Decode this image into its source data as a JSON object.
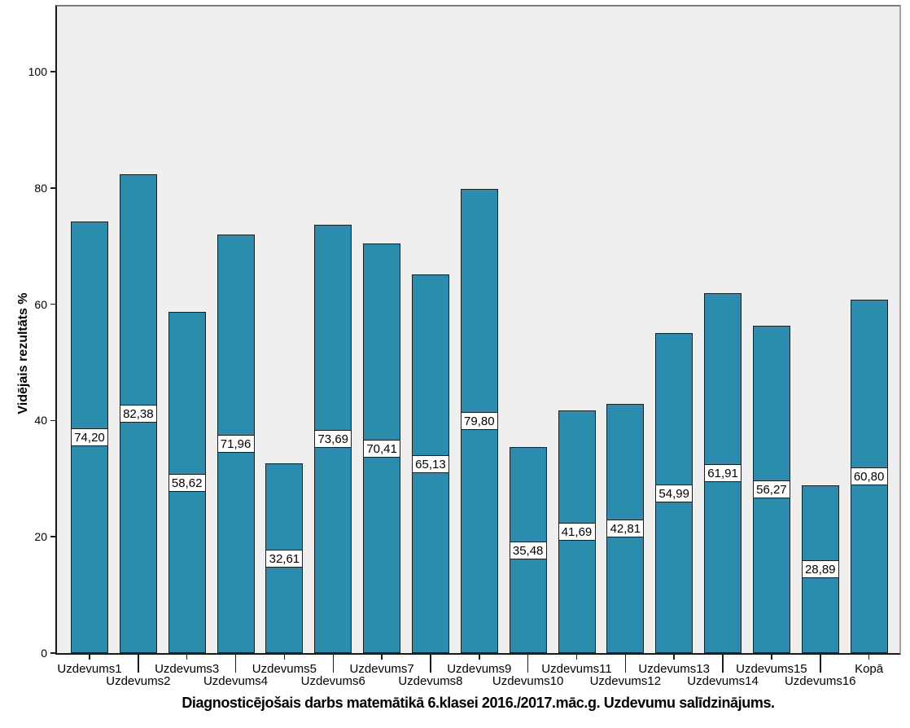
{
  "chart_data": {
    "type": "bar",
    "title": "Diagnosticējošais darbs matemātikā 6.klasei 2016./2017.māc.g. Uzdevumu salīdzinājums.",
    "ylabel": "Vidējais rezultāts %",
    "xlabel": "",
    "categories": [
      "Uzdevums1",
      "Uzdevums2",
      "Uzdevums3",
      "Uzdevums4",
      "Uzdevums5",
      "Uzdevums6",
      "Uzdevums7",
      "Uzdevums8",
      "Uzdevums9",
      "Uzdevums10",
      "Uzdevums11",
      "Uzdevums12",
      "Uzdevums13",
      "Uzdevums14",
      "Uzdevums15",
      "Uzdevums16",
      "Kopā"
    ],
    "values": [
      74.2,
      82.38,
      58.62,
      71.96,
      32.61,
      73.69,
      70.41,
      65.13,
      79.8,
      35.48,
      41.69,
      42.81,
      54.99,
      61.91,
      56.27,
      28.89,
      60.8
    ],
    "value_labels": [
      "74,20",
      "82,38",
      "58,62",
      "71,96",
      "32,61",
      "73,69",
      "70,41",
      "65,13",
      "79,80",
      "35,48",
      "41,69",
      "42,81",
      "54,99",
      "61,91",
      "56,27",
      "28,89",
      "60,80"
    ],
    "yticks": [
      0,
      20,
      40,
      60,
      80,
      100
    ],
    "ylim": [
      0,
      111.5
    ],
    "grid": false,
    "legend": null,
    "value_label_position": "center-of-bar",
    "x_label_layout": "staggered-two-rows",
    "colors": {
      "bar_fill": "#2b8cae",
      "bar_border": "#1f1f1f",
      "plot_background": "#efefef",
      "outer_background": "#ffffff",
      "axis_line": "#1a1a1a",
      "frame_top_right": "#8c8c8c",
      "value_box_background": "#ffffff",
      "value_box_border": "#1c1c1c",
      "text": "#000000"
    }
  }
}
